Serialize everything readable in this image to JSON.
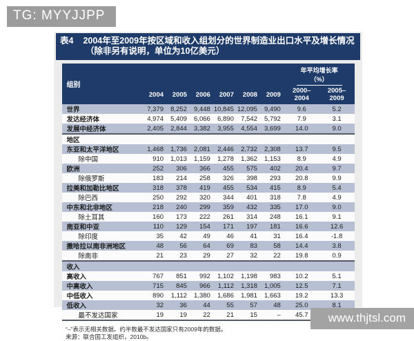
{
  "watermarks": {
    "top": "TG: MYYJJPP",
    "bottom": "www.thjtsl.com"
  },
  "colors": {
    "header_navy": "#1e3b69",
    "row_stripe": "#b7c0d3",
    "banner_gray": "#9c9c9c",
    "panel_gray": "#ececec"
  },
  "table": {
    "tag": "表4",
    "title": "2004年至2009年按区域和收入组划分的世界制造业出口水平及增长情况",
    "subtitle": "（除非另有说明，单位为10亿美元）",
    "group_col_header": "组别",
    "growth_header": "年平均增长率",
    "growth_unit": "（%）",
    "years": [
      "2004",
      "2005",
      "2006",
      "2007",
      "2008",
      "2009"
    ],
    "growth_cols": [
      "2000–2004",
      "2005–2009"
    ],
    "rows": [
      {
        "label": "世界",
        "bg": "stripe",
        "section": false,
        "indent": false,
        "bold": true,
        "values": [
          "7,379",
          "8,252",
          "9,448",
          "10,845",
          "12,095",
          "9,490"
        ],
        "growth": [
          "9.6",
          "5.2"
        ]
      },
      {
        "label": "发达经济体",
        "bg": "white",
        "section": false,
        "indent": false,
        "bold": true,
        "values": [
          "4,974",
          "5,409",
          "6,066",
          "6,890",
          "7,542",
          "5,792"
        ],
        "growth": [
          "7.9",
          "3.1"
        ]
      },
      {
        "label": "发展中经济体",
        "bg": "stripe",
        "section": false,
        "indent": false,
        "bold": true,
        "values": [
          "2,405",
          "2,844",
          "3,382",
          "3,955",
          "4,554",
          "3,699"
        ],
        "growth": [
          "14.0",
          "9.0"
        ]
      },
      {
        "label": "地区",
        "bg": "white",
        "section": true,
        "indent": false,
        "bold": true,
        "values": [],
        "growth": []
      },
      {
        "label": "东亚和太平洋地区",
        "bg": "stripe",
        "section": false,
        "indent": false,
        "bold": true,
        "values": [
          "1,468",
          "1,736",
          "2,081",
          "2,446",
          "2,732",
          "2,308"
        ],
        "growth": [
          "13.7",
          "9.5"
        ]
      },
      {
        "label": "除中国",
        "bg": "white",
        "section": false,
        "indent": true,
        "bold": false,
        "values": [
          "910",
          "1,013",
          "1,159",
          "1,278",
          "1,362",
          "1,153"
        ],
        "growth": [
          "8.9",
          "4.9"
        ]
      },
      {
        "label": "欧洲",
        "bg": "stripe",
        "section": false,
        "indent": false,
        "bold": true,
        "values": [
          "252",
          "306",
          "366",
          "455",
          "575",
          "402"
        ],
        "growth": [
          "20.4",
          "9.7"
        ]
      },
      {
        "label": "除俄罗斯",
        "bg": "white",
        "section": false,
        "indent": true,
        "bold": false,
        "values": [
          "183",
          "214",
          "258",
          "326",
          "398",
          "293"
        ],
        "growth": [
          "20.8",
          "9.9"
        ]
      },
      {
        "label": "拉美和加勒比地区",
        "bg": "stripe",
        "section": false,
        "indent": false,
        "bold": true,
        "values": [
          "318",
          "378",
          "419",
          "455",
          "534",
          "415"
        ],
        "growth": [
          "8.9",
          "5.4"
        ]
      },
      {
        "label": "除巴西",
        "bg": "white",
        "section": false,
        "indent": true,
        "bold": false,
        "values": [
          "250",
          "292",
          "320",
          "344",
          "401",
          "318"
        ],
        "growth": [
          "7.8",
          "4.9"
        ]
      },
      {
        "label": "中东和北非地区",
        "bg": "stripe",
        "section": false,
        "indent": false,
        "bold": true,
        "values": [
          "218",
          "240",
          "299",
          "359",
          "432",
          "335"
        ],
        "growth": [
          "17.0",
          "9.0"
        ]
      },
      {
        "label": "除土耳其",
        "bg": "white",
        "section": false,
        "indent": true,
        "bold": false,
        "values": [
          "160",
          "173",
          "222",
          "261",
          "314",
          "248"
        ],
        "growth": [
          "16.1",
          "9.1"
        ]
      },
      {
        "label": "南亚和中亚",
        "bg": "stripe",
        "section": false,
        "indent": false,
        "bold": true,
        "values": [
          "110",
          "129",
          "154",
          "171",
          "197",
          "181"
        ],
        "growth": [
          "16.6",
          "12.6"
        ]
      },
      {
        "label": "除印度",
        "bg": "white",
        "section": false,
        "indent": true,
        "bold": false,
        "values": [
          "35",
          "42",
          "49",
          "46",
          "41",
          "31"
        ],
        "growth": [
          "16.4",
          "-1.8"
        ]
      },
      {
        "label": "撒哈拉以南非洲地区",
        "bg": "stripe",
        "section": false,
        "indent": false,
        "bold": true,
        "values": [
          "48",
          "56",
          "64",
          "69",
          "83",
          "58"
        ],
        "growth": [
          "14.4",
          "3.8"
        ]
      },
      {
        "label": "除南非",
        "bg": "white",
        "section": false,
        "indent": true,
        "bold": false,
        "values": [
          "21",
          "23",
          "29",
          "27",
          "32",
          "22"
        ],
        "growth": [
          "19.8",
          "0.9"
        ]
      },
      {
        "label": "收入",
        "bg": "stripe",
        "section": true,
        "indent": false,
        "bold": true,
        "values": [],
        "growth": []
      },
      {
        "label": "高收入",
        "bg": "white",
        "section": false,
        "indent": false,
        "bold": true,
        "values": [
          "767",
          "851",
          "992",
          "1,102",
          "1,198",
          "983"
        ],
        "growth": [
          "10.2",
          "5.1"
        ]
      },
      {
        "label": "中高收入",
        "bg": "stripe",
        "section": false,
        "indent": false,
        "bold": true,
        "values": [
          "715",
          "845",
          "966",
          "1,112",
          "1,318",
          "1,005"
        ],
        "growth": [
          "12.5",
          "7.1"
        ]
      },
      {
        "label": "中低收入",
        "bg": "white",
        "section": false,
        "indent": false,
        "bold": true,
        "values": [
          "890",
          "1,112",
          "1,380",
          "1,686",
          "1,981",
          "1,663"
        ],
        "growth": [
          "19.2",
          "13.3"
        ]
      },
      {
        "label": "低收入",
        "bg": "stripe",
        "section": false,
        "indent": false,
        "bold": true,
        "values": [
          "32",
          "36",
          "44",
          "55",
          "57",
          "48"
        ],
        "growth": [
          "25.0",
          "8.1"
        ]
      },
      {
        "label": "最不发达国家",
        "bg": "white",
        "section": false,
        "indent": true,
        "bold": false,
        "values": [
          "19",
          "19",
          "22",
          "21",
          "15",
          "–"
        ],
        "growth": [
          "45.7",
          "–"
        ]
      }
    ],
    "footnotes": [
      "“–”表示无相关数据。约半数最不发达国家只有2009年的数据。",
      "来源：联合国工发组织，2010b。"
    ]
  }
}
